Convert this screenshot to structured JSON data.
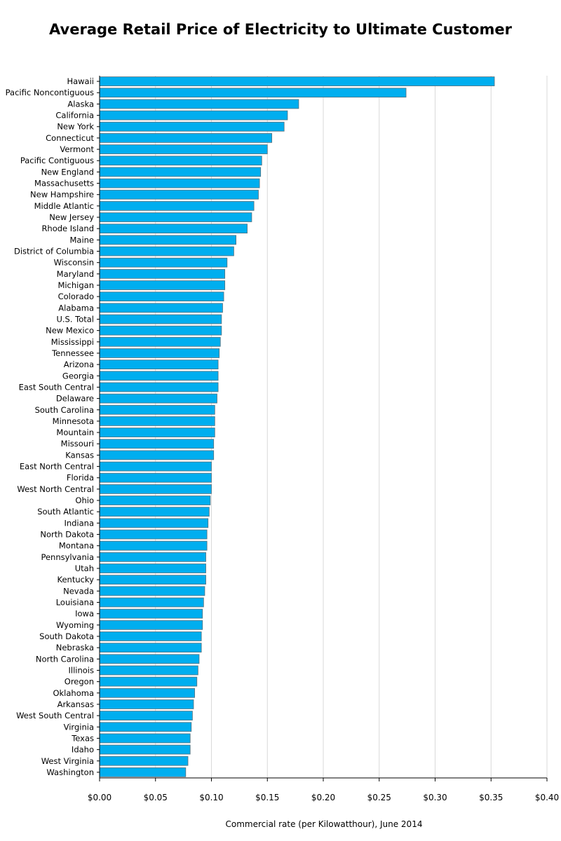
{
  "chart_data": {
    "type": "bar",
    "orientation": "horizontal",
    "title": "Average Retail Price of Electricity to Ultimate Customer",
    "xlabel": "Commercial rate (per Kilowatthour), June 2014",
    "ylabel": "",
    "xlim": [
      0,
      0.4
    ],
    "x_ticks": [
      0,
      0.05,
      0.1,
      0.15,
      0.2,
      0.25,
      0.3,
      0.35,
      0.4
    ],
    "x_tick_labels": [
      "$0.00",
      "$0.05",
      "$0.10",
      "$0.15",
      "$0.20",
      "$0.25",
      "$0.30",
      "$0.35",
      "$0.40"
    ],
    "grid": "vertical",
    "bar_color": "#00aeef",
    "bar_edge_color": "#5a6f7a",
    "categories": [
      "Hawaii",
      "Pacific Noncontiguous",
      "Alaska",
      "California",
      "New York",
      "Connecticut",
      "Vermont",
      "Pacific Contiguous",
      "New England",
      "Massachusetts",
      "New Hampshire",
      "Middle Atlantic",
      "New Jersey",
      "Rhode Island",
      "Maine",
      "District of Columbia",
      "Wisconsin",
      "Maryland",
      "Michigan",
      "Colorado",
      "Alabama",
      "U.S. Total",
      "New Mexico",
      "Mississippi",
      "Tennessee",
      "Arizona",
      "Georgia",
      "East South Central",
      "Delaware",
      "South Carolina",
      "Minnesota",
      "Mountain",
      "Missouri",
      "Kansas",
      "East North Central",
      "Florida",
      "West North Central",
      "Ohio",
      "South Atlantic",
      "Indiana",
      "North Dakota",
      "Montana",
      "Pennsylvania",
      "Utah",
      "Kentucky",
      "Nevada",
      "Louisiana",
      "Iowa",
      "Wyoming",
      "South Dakota",
      "Nebraska",
      "North Carolina",
      "Illinois",
      "Oregon",
      "Oklahoma",
      "Arkansas",
      "West South Central",
      "Virginia",
      "Texas",
      "Idaho",
      "West Virginia",
      "Washington"
    ],
    "values": [
      0.353,
      0.274,
      0.178,
      0.168,
      0.165,
      0.154,
      0.15,
      0.145,
      0.144,
      0.143,
      0.142,
      0.138,
      0.136,
      0.132,
      0.122,
      0.12,
      0.114,
      0.112,
      0.112,
      0.111,
      0.11,
      0.109,
      0.109,
      0.108,
      0.107,
      0.106,
      0.106,
      0.106,
      0.105,
      0.103,
      0.103,
      0.103,
      0.102,
      0.102,
      0.1,
      0.1,
      0.1,
      0.099,
      0.098,
      0.097,
      0.096,
      0.096,
      0.095,
      0.095,
      0.095,
      0.094,
      0.093,
      0.092,
      0.092,
      0.091,
      0.091,
      0.089,
      0.088,
      0.087,
      0.085,
      0.084,
      0.083,
      0.082,
      0.081,
      0.081,
      0.079,
      0.077
    ]
  }
}
